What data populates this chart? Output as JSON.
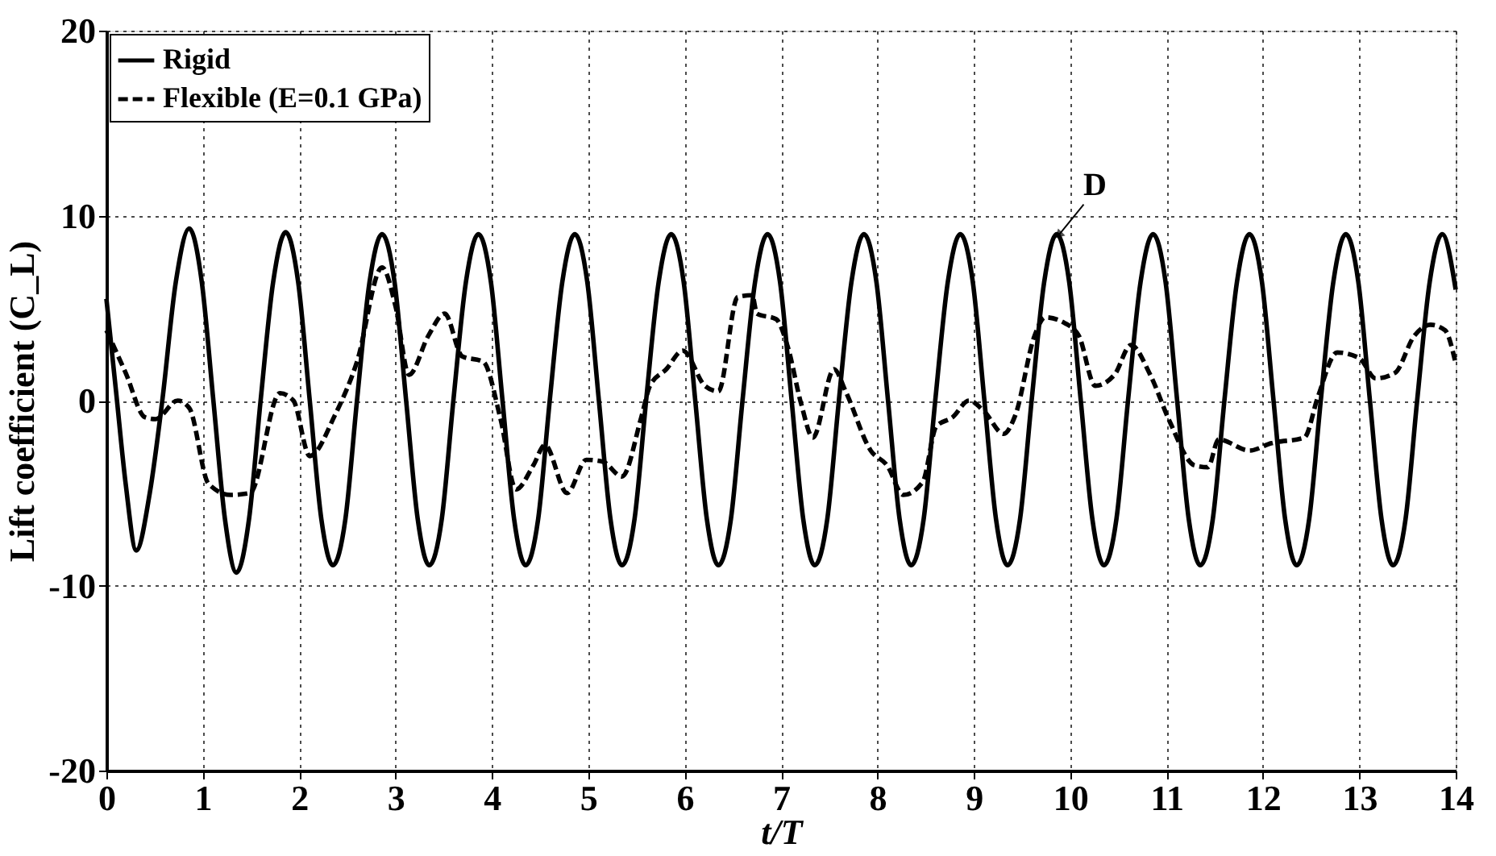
{
  "chart_data": {
    "type": "line",
    "xlabel": "t/T",
    "ylabel": "Lift coefficient (C_L)",
    "xlim": [
      0,
      14
    ],
    "ylim": [
      -20,
      20
    ],
    "xticks": [
      0,
      1,
      2,
      3,
      4,
      5,
      6,
      7,
      8,
      9,
      10,
      11,
      12,
      13,
      14
    ],
    "yticks": [
      -20,
      -10,
      0,
      10,
      20
    ],
    "grid": true,
    "legend": "top left",
    "marker": "none",
    "annotations": [
      {
        "text": "D",
        "x": 9.89,
        "y": 9.0
      }
    ],
    "series": [
      {
        "name": "Rigid",
        "color": "#000000",
        "line_style": "solid",
        "x": [
          0,
          0.1,
          0.2,
          0.31,
          0.45,
          0.58,
          0.72,
          0.86,
          0.99,
          1.11,
          1.23,
          1.35,
          1.48,
          1.6,
          1.73,
          1.86,
          1.99,
          2.11,
          2.23,
          2.35,
          2.48,
          2.6,
          2.73,
          2.86,
          2.99,
          3.11,
          3.23,
          3.35,
          3.48,
          3.6,
          3.73,
          3.86,
          3.99,
          4.11,
          4.23,
          4.35,
          4.48,
          4.6,
          4.73,
          4.86,
          4.99,
          5.11,
          5.23,
          5.35,
          5.48,
          5.6,
          5.73,
          5.86,
          5.99,
          6.11,
          6.23,
          6.35,
          6.48,
          6.6,
          6.73,
          6.86,
          6.99,
          7.11,
          7.23,
          7.35,
          7.48,
          7.6,
          7.73,
          7.86,
          7.99,
          8.11,
          8.23,
          8.35,
          8.48,
          8.6,
          8.73,
          8.86,
          8.99,
          9.11,
          9.23,
          9.35,
          9.48,
          9.6,
          9.73,
          9.86,
          9.99,
          10.11,
          10.23,
          10.35,
          10.48,
          10.6,
          10.73,
          10.86,
          10.99,
          11.11,
          11.23,
          11.35,
          11.48,
          11.6,
          11.73,
          11.86,
          11.99,
          12.11,
          12.23,
          12.35,
          12.48,
          12.6,
          12.73,
          12.86,
          12.99,
          13.11,
          13.23,
          13.35,
          13.48,
          13.6,
          13.73,
          13.86,
          14
        ],
        "values": [
          5.5,
          0.5,
          -4.5,
          -8.1,
          -5.0,
          0,
          6.4,
          9.3,
          6.4,
          0,
          -6.4,
          -9.3,
          -6.4,
          0,
          6.4,
          9.1,
          6.4,
          0,
          -6.4,
          -8.9,
          -6.4,
          0,
          6.4,
          9.0,
          6.4,
          0,
          -6.4,
          -8.9,
          -6.4,
          0,
          6.4,
          9.0,
          6.4,
          0,
          -6.4,
          -8.9,
          -6.4,
          0,
          6.4,
          9.0,
          6.4,
          0,
          -6.4,
          -8.9,
          -6.4,
          0,
          6.4,
          9.0,
          6.4,
          0,
          -6.4,
          -8.9,
          -6.4,
          0,
          6.4,
          9.0,
          6.4,
          0,
          -6.4,
          -8.9,
          -6.4,
          0,
          6.4,
          9.0,
          6.4,
          0,
          -6.4,
          -8.9,
          -6.4,
          0,
          6.4,
          9.0,
          6.4,
          0,
          -6.4,
          -8.9,
          -6.4,
          0,
          6.4,
          9.0,
          6.4,
          0,
          -6.4,
          -8.9,
          -6.4,
          0,
          6.4,
          9.0,
          6.4,
          0,
          -6.4,
          -8.9,
          -6.4,
          0,
          6.4,
          9.0,
          6.4,
          0,
          -6.4,
          -8.9,
          -6.4,
          0,
          6.4,
          9.0,
          6.4,
          0,
          -6.4,
          -8.9,
          -6.4,
          0,
          6.4,
          9.0,
          6.0
        ]
      },
      {
        "name": "Flexible (E=0.1 GPa)",
        "color": "#000000",
        "line_style": "dashed",
        "x": [
          0,
          0.2,
          0.4,
          0.51,
          0.74,
          0.86,
          1.06,
          1.29,
          1.49,
          1.8,
          1.94,
          2.11,
          2.37,
          2.6,
          2.86,
          3.0,
          3.14,
          3.34,
          3.51,
          3.69,
          3.91,
          4.09,
          4.25,
          4.43,
          4.55,
          4.78,
          4.98,
          5.15,
          5.35,
          5.55,
          5.64,
          5.81,
          5.98,
          6.21,
          6.35,
          6.55,
          6.7,
          6.75,
          6.95,
          7.07,
          7.21,
          7.33,
          7.55,
          7.67,
          7.93,
          8.1,
          8.27,
          8.47,
          8.61,
          8.78,
          8.95,
          9.11,
          9.31,
          9.43,
          9.63,
          9.74,
          9.94,
          10.09,
          10.26,
          10.46,
          10.63,
          10.83,
          11.03,
          11.29,
          11.43,
          11.54,
          11.86,
          12.09,
          12.43,
          12.57,
          12.77,
          13.0,
          13.17,
          13.37,
          13.57,
          13.74,
          13.89,
          14
        ],
        "values": [
          3.8,
          1.5,
          -0.9,
          -1.0,
          0,
          -0.4,
          -4.5,
          -5.1,
          -5.0,
          0.4,
          0,
          -3.0,
          -0.8,
          2.1,
          7.2,
          5.1,
          1.4,
          3.5,
          4.7,
          2.4,
          2.1,
          -1.0,
          -4.8,
          -3.5,
          -2.4,
          -5.0,
          -3.2,
          -3.3,
          -4.1,
          -0.9,
          0.8,
          1.7,
          2.7,
          0.8,
          0.5,
          5.6,
          5.7,
          4.7,
          4.4,
          2.9,
          -0.2,
          -2.0,
          1.7,
          0.5,
          -2.7,
          -3.5,
          -5.1,
          -4.4,
          -1.4,
          -0.9,
          0,
          -0.6,
          -1.8,
          -0.8,
          3.5,
          4.5,
          4.2,
          3.5,
          0.8,
          1.4,
          3.0,
          1.4,
          -1.1,
          -3.5,
          -3.6,
          -2.1,
          -2.7,
          -2.3,
          -2.0,
          0.2,
          2.6,
          2.3,
          1.2,
          1.5,
          3.5,
          4.1,
          3.8,
          2.0
        ]
      }
    ]
  }
}
